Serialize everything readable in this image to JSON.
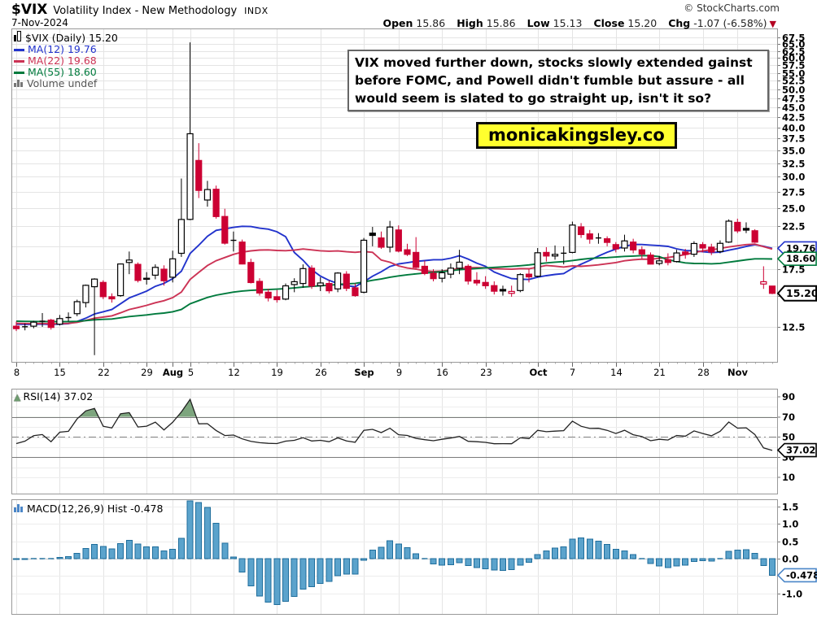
{
  "header": {
    "symbol": "$VIX",
    "title": "Volatility Index - New Methodology",
    "exchange": "INDX",
    "date": "7-Nov-2024",
    "copyright": "© StockCharts.com",
    "quote": {
      "open_label": "Open",
      "open_value": "15.86",
      "high_label": "High",
      "high_value": "15.86",
      "low_label": "Low",
      "low_value": "15.13",
      "close_label": "Close",
      "close_value": "15.20",
      "chg_label": "Chg",
      "chg_value": "-1.07 (-6.58%)",
      "chg_direction": "▼"
    }
  },
  "legend": {
    "price_row": "$VIX (Daily) 15.20",
    "ma12_row": "MA(12) 19.76",
    "ma22_row": "MA(22) 19.68",
    "ma55_row": "MA(55) 18.60",
    "volume_row": "Volume undef"
  },
  "annotation": {
    "text": "VIX moved further down, stocks slowly extended gainst before FOMC, and Powell didn't fumble but assure - all would seem is slated to go straight up, isn't it so?"
  },
  "badge": {
    "text": "monicakingsley.co"
  },
  "rsi_panel": {
    "label": "RSI(14) 37.02",
    "callout": "37.02"
  },
  "macd_panel": {
    "label": "MACD(12,26,9) Hist -0.478",
    "callout": "-0.478"
  },
  "colors": {
    "candle_down": "#cc0033",
    "candle_up_outline": "#000000",
    "ma12": "#2233cc",
    "ma22": "#cc3355",
    "ma55": "#007a3d",
    "rsi_line": "#222222",
    "rsi_fill": "#6f9b70",
    "macd_bar_fill": "#5ba3cc",
    "macd_bar_stroke": "#1f6e9c",
    "grid": "#e4e4e4",
    "panel_border": "#999999",
    "badge_bg": "#ffff2e",
    "chg_arrow": "#b40021",
    "macd_callout_border": "#4a86c8"
  },
  "chart_data": {
    "type": "candlestick",
    "symbol": "$VIX",
    "timeframe": "Daily",
    "title": "$VIX (Daily) 15.20",
    "y_axis": {
      "scale": "log",
      "tick_min": 12.5,
      "tick_max": 67.5,
      "tick_step": 2.5,
      "labels_hidden_by_callouts": [
        15.0,
        20.0
      ]
    },
    "x_axis": {
      "ticks": [
        {
          "label": "8",
          "i": 0
        },
        {
          "label": "15",
          "i": 5
        },
        {
          "label": "22",
          "i": 10
        },
        {
          "label": "29",
          "i": 15
        },
        {
          "label": "Aug",
          "i": 18,
          "b": 1
        },
        {
          "label": "5",
          "i": 20
        },
        {
          "label": "12",
          "i": 25
        },
        {
          "label": "19",
          "i": 30
        },
        {
          "label": "26",
          "i": 35
        },
        {
          "label": "Sep",
          "i": 40,
          "b": 1
        },
        {
          "label": "9",
          "i": 44
        },
        {
          "label": "16",
          "i": 49
        },
        {
          "label": "23",
          "i": 54
        },
        {
          "label": "Oct",
          "i": 60,
          "b": 1
        },
        {
          "label": "7",
          "i": 64
        },
        {
          "label": "14",
          "i": 69
        },
        {
          "label": "21",
          "i": 74
        },
        {
          "label": "28",
          "i": 79
        },
        {
          "label": "Nov",
          "i": 83,
          "b": 1
        }
      ]
    },
    "prev_close_before_first": 12.48,
    "dates": [
      "Jul 8",
      "Jul 9",
      "Jul 10",
      "Jul 11",
      "Jul 12",
      "Jul 15",
      "Jul 16",
      "Jul 17",
      "Jul 18",
      "Jul 19",
      "Jul 22",
      "Jul 23",
      "Jul 24",
      "Jul 25",
      "Jul 26",
      "Jul 29",
      "Jul 30",
      "Jul 31",
      "Aug 1",
      "Aug 2",
      "Aug 5",
      "Aug 6",
      "Aug 7",
      "Aug 8",
      "Aug 9",
      "Aug 12",
      "Aug 13",
      "Aug 14",
      "Aug 15",
      "Aug 16",
      "Aug 19",
      "Aug 20",
      "Aug 21",
      "Aug 22",
      "Aug 23",
      "Aug 26",
      "Aug 27",
      "Aug 28",
      "Aug 29",
      "Aug 30",
      "Sep 3",
      "Sep 4",
      "Sep 5",
      "Sep 6",
      "Sep 9",
      "Sep 10",
      "Sep 11",
      "Sep 12",
      "Sep 13",
      "Sep 16",
      "Sep 17",
      "Sep 18",
      "Sep 19",
      "Sep 20",
      "Sep 23",
      "Sep 24",
      "Sep 25",
      "Sep 26",
      "Sep 27",
      "Sep 30",
      "Oct 1",
      "Oct 2",
      "Oct 3",
      "Oct 4",
      "Oct 7",
      "Oct 8",
      "Oct 9",
      "Oct 10",
      "Oct 11",
      "Oct 14",
      "Oct 15",
      "Oct 16",
      "Oct 17",
      "Oct 18",
      "Oct 21",
      "Oct 22",
      "Oct 23",
      "Oct 24",
      "Oct 25",
      "Oct 28",
      "Oct 29",
      "Oct 30",
      "Oct 31",
      "Nov 1",
      "Nov 4",
      "Nov 5",
      "Nov 6",
      "Nov 7"
    ],
    "ohlc": [
      [
        12.55,
        12.9,
        12.2,
        12.37
      ],
      [
        12.45,
        12.75,
        12.25,
        12.51
      ],
      [
        12.55,
        12.95,
        12.4,
        12.85
      ],
      [
        12.9,
        13.55,
        12.5,
        12.92
      ],
      [
        13.0,
        13.1,
        12.3,
        12.46
      ],
      [
        12.7,
        13.4,
        12.6,
        13.12
      ],
      [
        13.2,
        13.6,
        12.9,
        13.19
      ],
      [
        13.5,
        14.65,
        13.3,
        14.48
      ],
      [
        14.4,
        16.0,
        14.0,
        15.93
      ],
      [
        15.8,
        16.6,
        10.6,
        16.52
      ],
      [
        16.2,
        16.4,
        14.7,
        14.91
      ],
      [
        14.9,
        15.2,
        14.4,
        14.72
      ],
      [
        15.0,
        18.1,
        14.9,
        18.04
      ],
      [
        18.2,
        19.4,
        17.0,
        18.46
      ],
      [
        18.0,
        18.2,
        16.2,
        16.39
      ],
      [
        16.5,
        17.2,
        16.0,
        16.6
      ],
      [
        16.9,
        18.0,
        16.5,
        17.69
      ],
      [
        17.5,
        17.9,
        15.9,
        16.36
      ],
      [
        16.7,
        19.5,
        16.2,
        18.59
      ],
      [
        19.2,
        29.7,
        18.8,
        23.39
      ],
      [
        23.4,
        65.73,
        23.3,
        38.57
      ],
      [
        33.0,
        36.5,
        26.5,
        27.71
      ],
      [
        26.2,
        29.3,
        25.2,
        27.85
      ],
      [
        27.9,
        28.5,
        23.5,
        23.79
      ],
      [
        23.8,
        24.9,
        20.2,
        20.37
      ],
      [
        20.6,
        21.8,
        19.4,
        20.71
      ],
      [
        20.5,
        20.8,
        18.0,
        18.04
      ],
      [
        18.2,
        18.6,
        16.1,
        16.19
      ],
      [
        16.3,
        16.6,
        15.0,
        15.23
      ],
      [
        15.3,
        15.6,
        14.5,
        14.8
      ],
      [
        14.9,
        15.5,
        14.4,
        14.65
      ],
      [
        14.7,
        16.1,
        14.6,
        15.88
      ],
      [
        16.0,
        16.6,
        15.3,
        16.27
      ],
      [
        16.1,
        18.0,
        15.7,
        17.56
      ],
      [
        17.6,
        17.9,
        15.6,
        15.86
      ],
      [
        15.9,
        16.7,
        15.4,
        16.15
      ],
      [
        16.1,
        16.4,
        15.2,
        15.43
      ],
      [
        15.6,
        17.2,
        15.3,
        17.11
      ],
      [
        17.0,
        17.3,
        15.4,
        15.65
      ],
      [
        15.7,
        16.1,
        14.9,
        15.0
      ],
      [
        15.3,
        21.0,
        15.2,
        20.72
      ],
      [
        21.6,
        22.4,
        20.0,
        21.31
      ],
      [
        21.0,
        21.8,
        19.7,
        19.9
      ],
      [
        19.9,
        23.2,
        19.3,
        22.38
      ],
      [
        22.0,
        22.6,
        19.3,
        19.45
      ],
      [
        19.6,
        20.3,
        18.9,
        19.08
      ],
      [
        19.3,
        21.1,
        17.6,
        17.69
      ],
      [
        17.8,
        18.4,
        16.9,
        17.07
      ],
      [
        17.1,
        17.5,
        16.3,
        16.56
      ],
      [
        16.6,
        17.5,
        16.2,
        17.14
      ],
      [
        17.0,
        18.1,
        16.6,
        17.61
      ],
      [
        17.6,
        19.6,
        17.0,
        18.23
      ],
      [
        17.8,
        18.0,
        16.0,
        16.33
      ],
      [
        16.4,
        17.2,
        15.9,
        16.15
      ],
      [
        16.2,
        16.8,
        15.6,
        15.89
      ],
      [
        15.9,
        16.3,
        15.1,
        15.39
      ],
      [
        15.55,
        15.9,
        15.0,
        15.41
      ],
      [
        15.2,
        15.9,
        14.9,
        15.37
      ],
      [
        15.45,
        17.1,
        15.3,
        16.96
      ],
      [
        17.0,
        17.5,
        16.2,
        16.73
      ],
      [
        16.8,
        19.8,
        16.7,
        19.26
      ],
      [
        19.3,
        19.9,
        18.3,
        18.9
      ],
      [
        18.9,
        20.1,
        18.5,
        19.08
      ],
      [
        19.2,
        20.0,
        18.0,
        19.21
      ],
      [
        19.3,
        23.1,
        19.2,
        22.64
      ],
      [
        22.4,
        22.9,
        21.0,
        21.42
      ],
      [
        21.5,
        22.0,
        20.3,
        20.86
      ],
      [
        21.0,
        21.6,
        20.3,
        20.93
      ],
      [
        20.9,
        21.2,
        20.0,
        20.46
      ],
      [
        20.2,
        20.5,
        19.3,
        19.7
      ],
      [
        19.8,
        21.4,
        19.4,
        20.64
      ],
      [
        20.5,
        20.9,
        19.2,
        19.58
      ],
      [
        19.6,
        20.0,
        18.6,
        19.11
      ],
      [
        19.0,
        19.3,
        18.0,
        18.03
      ],
      [
        18.1,
        18.9,
        17.9,
        18.37
      ],
      [
        18.5,
        19.2,
        17.9,
        18.2
      ],
      [
        18.3,
        19.6,
        18.2,
        19.24
      ],
      [
        19.35,
        19.7,
        18.6,
        19.08
      ],
      [
        19.1,
        20.6,
        18.8,
        20.33
      ],
      [
        20.2,
        20.5,
        19.3,
        19.8
      ],
      [
        19.9,
        20.3,
        19.0,
        19.34
      ],
      [
        19.4,
        20.7,
        19.2,
        20.35
      ],
      [
        20.5,
        23.4,
        20.4,
        23.16
      ],
      [
        23.0,
        23.5,
        21.6,
        21.88
      ],
      [
        22.2,
        23.0,
        21.6,
        21.98
      ],
      [
        21.9,
        22.1,
        20.4,
        20.49
      ],
      [
        16.05,
        17.8,
        15.6,
        16.27
      ],
      [
        15.86,
        15.86,
        15.13,
        15.2
      ]
    ],
    "overlays": [
      {
        "name": "MA(12)",
        "period": 12,
        "last_value": 19.76
      },
      {
        "name": "MA(22)",
        "period": 22,
        "last_value": 19.68
      },
      {
        "name": "MA(55)",
        "period": 55,
        "last_value": 18.6
      }
    ],
    "price_callouts": [
      {
        "value": 19.76,
        "label": "19.76",
        "color": "#2233cc"
      },
      {
        "value": 18.6,
        "label": "18.60",
        "color": "#007a3d"
      },
      {
        "value": 15.2,
        "label": "15.20",
        "color": "#000000",
        "bold": true
      }
    ],
    "rsi": {
      "period": 14,
      "last_value": 37.02,
      "overbought": 70,
      "oversold": 30,
      "midline": 50,
      "axis_labels": [
        90,
        70,
        50,
        30,
        10
      ]
    },
    "macd": {
      "params": [
        12,
        26,
        9
      ],
      "hist_last": -0.478,
      "axis_labels": [
        1.5,
        1.0,
        0.5,
        0.0,
        -0.5,
        -1.0
      ],
      "hidden_axis_labels": [
        -0.5
      ]
    }
  }
}
